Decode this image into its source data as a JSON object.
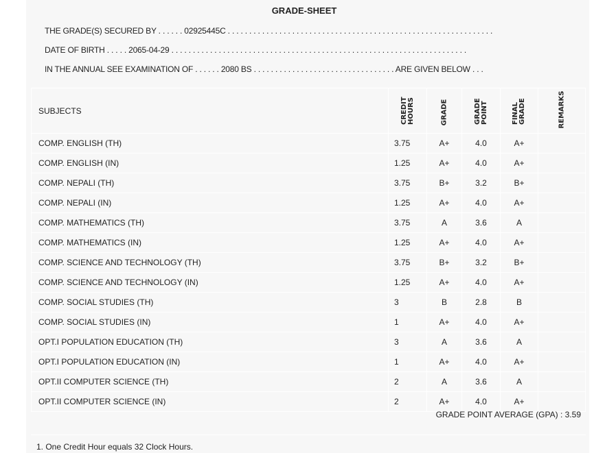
{
  "title": "GRADE-SHEET",
  "info": {
    "secured_by": "THE GRADE(S) SECURED BY . . . . . . 02925445C . . . . . . . . . . . . . . . . . . . . . . . . . . . . . . . . . . . . . . . . . . . . . . . . . . . . . . . . . . . . . .",
    "dob": "DATE OF BIRTH . . . . . 2065-04-29 . . . . . . . . . . . . . . . . . . . . . . . . . . . . . . . . . . . . . . . . . . . . . . . . . . . . . . . . . . . . . . . . . . . . .",
    "exam": "IN THE ANNUAL SEE EXAMINATION OF . . . . . . 2080 BS . . . . . . . . . . . . . . . . . . . . . . . . . . . . . . . . . ARE GIVEN BELOW . . ."
  },
  "headers": {
    "subjects": "SUBJECTS",
    "credit": "CREDIT HOURS",
    "grade": "GRADE",
    "gp": "GRADE POINT",
    "final": "FINAL GRADE",
    "remarks": "REMARKS"
  },
  "rows": [
    {
      "subject": "COMP. ENGLISH (TH)",
      "credit": "3.75",
      "grade": "A+",
      "gp": "4.0",
      "final": "A+"
    },
    {
      "subject": "COMP. ENGLISH (IN)",
      "credit": "1.25",
      "grade": "A+",
      "gp": "4.0",
      "final": "A+"
    },
    {
      "subject": "COMP. NEPALI (TH)",
      "credit": "3.75",
      "grade": "B+",
      "gp": "3.2",
      "final": "B+"
    },
    {
      "subject": "COMP. NEPALI (IN)",
      "credit": "1.25",
      "grade": "A+",
      "gp": "4.0",
      "final": "A+"
    },
    {
      "subject": "COMP. MATHEMATICS (TH)",
      "credit": "3.75",
      "grade": "A",
      "gp": "3.6",
      "final": "A"
    },
    {
      "subject": "COMP. MATHEMATICS (IN)",
      "credit": "1.25",
      "grade": "A+",
      "gp": "4.0",
      "final": "A+"
    },
    {
      "subject": "COMP. SCIENCE AND TECHNOLOGY (TH)",
      "credit": "3.75",
      "grade": "B+",
      "gp": "3.2",
      "final": "B+"
    },
    {
      "subject": "COMP. SCIENCE AND TECHNOLOGY (IN)",
      "credit": "1.25",
      "grade": "A+",
      "gp": "4.0",
      "final": "A+"
    },
    {
      "subject": "COMP. SOCIAL STUDIES (TH)",
      "credit": "3",
      "grade": "B",
      "gp": "2.8",
      "final": "B"
    },
    {
      "subject": "COMP. SOCIAL STUDIES (IN)",
      "credit": "1",
      "grade": "A+",
      "gp": "4.0",
      "final": "A+"
    },
    {
      "subject": "OPT.I POPULATION EDUCATION (TH)",
      "credit": "3",
      "grade": "A",
      "gp": "3.6",
      "final": "A"
    },
    {
      "subject": "OPT.I POPULATION EDUCATION (IN)",
      "credit": "1",
      "grade": "A+",
      "gp": "4.0",
      "final": "A+"
    },
    {
      "subject": "OPT.II COMPUTER SCIENCE (TH)",
      "credit": "2",
      "grade": "A",
      "gp": "3.6",
      "final": "A"
    },
    {
      "subject": "OPT.II COMPUTER SCIENCE (IN)",
      "credit": "2",
      "grade": "A+",
      "gp": "4.0",
      "final": "A+"
    }
  ],
  "gpa": "GRADE POINT AVERAGE (GPA) : 3.59",
  "note": "1. One Credit Hour equals 32 Clock Hours."
}
